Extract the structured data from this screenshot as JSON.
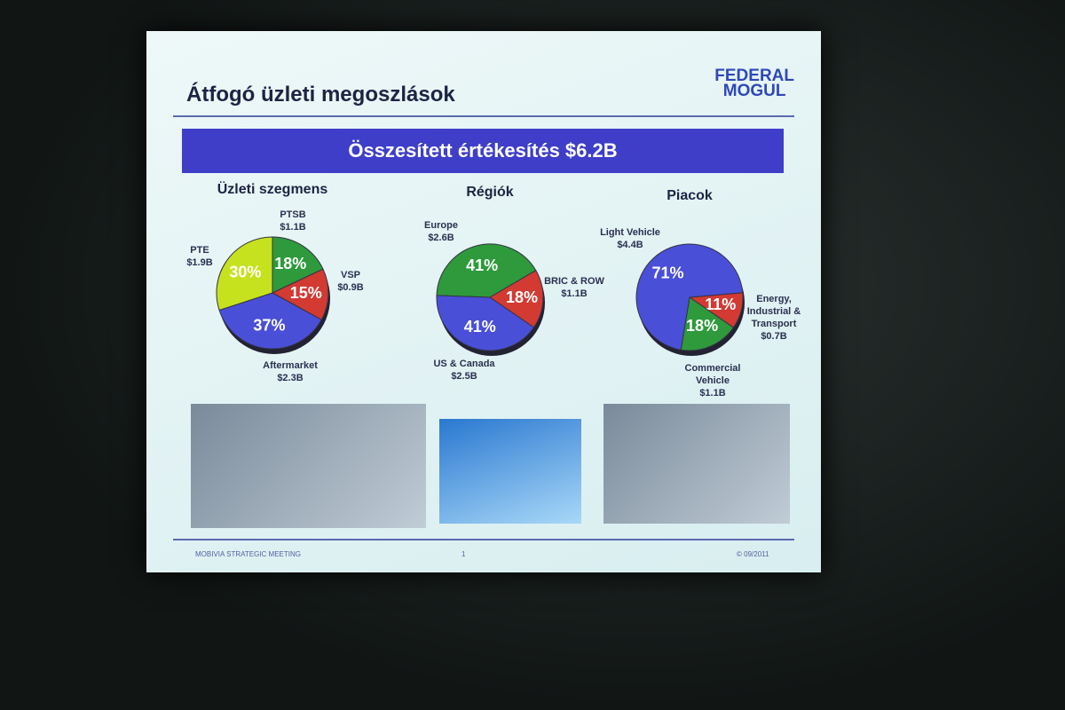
{
  "slide": {
    "title": "Átfogó üzleti megoszlások",
    "logo": [
      "FEDERAL",
      "MOGUL"
    ],
    "banner": "Összesített értékesítés $6.2B",
    "footer": {
      "left": "MOBIVIA STRATEGIC MEETING",
      "center": "1",
      "right": "© 09/2011"
    }
  },
  "chart_data": [
    {
      "type": "pie",
      "title": "Üzleti szegmens",
      "categories": [
        "PTSB",
        "VSP",
        "Aftermarket",
        "PTE"
      ],
      "amounts": [
        "$1.1B",
        "$0.9B",
        "$2.3B",
        "$1.9B"
      ],
      "values": [
        18,
        15,
        37,
        30
      ],
      "value_labels": [
        "18%",
        "15%",
        "37%",
        "30%"
      ],
      "colors": [
        "#2e9a3c",
        "#d23a32",
        "#4a4fd8",
        "#c6e21e"
      ]
    },
    {
      "type": "pie",
      "title": "Régiók",
      "categories": [
        "Europe",
        "BRIC & ROW",
        "US & Canada"
      ],
      "amounts": [
        "$2.6B",
        "$1.1B",
        "$2.5B"
      ],
      "values": [
        41,
        18,
        41
      ],
      "value_labels": [
        "41%",
        "18%",
        "41%"
      ],
      "colors": [
        "#2e9a3c",
        "#d23a32",
        "#4a4fd8"
      ]
    },
    {
      "type": "pie",
      "title": "Piacok",
      "categories": [
        "Energy, Industrial & Transport",
        "Commercial Vehicle",
        "Light Vehicle"
      ],
      "amounts": [
        "$0.7B",
        "$1.1B",
        "$4.4B"
      ],
      "values": [
        11,
        18,
        71
      ],
      "value_labels": [
        "11%",
        "18%",
        "71%"
      ],
      "colors": [
        "#d23a32",
        "#2e9a3c",
        "#4a4fd8"
      ]
    }
  ]
}
